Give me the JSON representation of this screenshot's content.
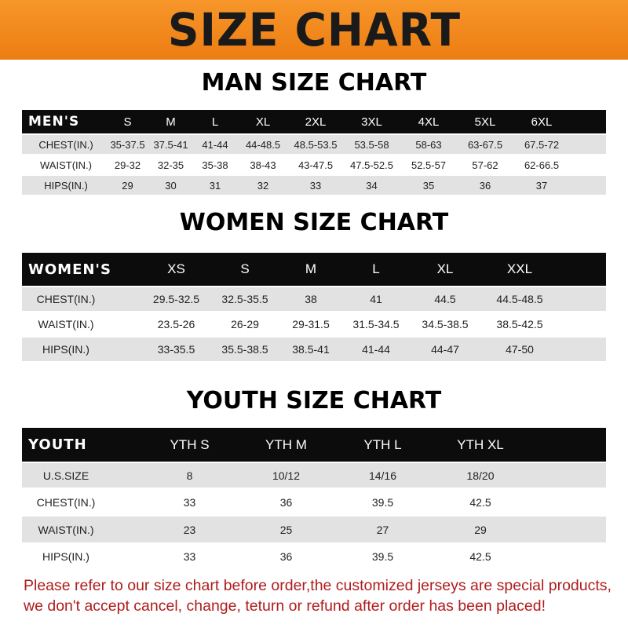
{
  "banner": {
    "title": "SIZE CHART"
  },
  "men": {
    "title": "MAN SIZE CHART",
    "header": "MEN'S",
    "sizes": [
      "S",
      "M",
      "L",
      "XL",
      "2XL",
      "3XL",
      "4XL",
      "5XL",
      "6XL"
    ],
    "rows": [
      {
        "label": "CHEST(IN.)",
        "values": [
          "35-37.5",
          "37.5-41",
          "41-44",
          "44-48.5",
          "48.5-53.5",
          "53.5-58",
          "58-63",
          "63-67.5",
          "67.5-72"
        ]
      },
      {
        "label": "WAIST(IN.)",
        "values": [
          "29-32",
          "32-35",
          "35-38",
          "38-43",
          "43-47.5",
          "47.5-52.5",
          "52.5-57",
          "57-62",
          "62-66.5"
        ]
      },
      {
        "label": "HIPS(IN.)",
        "values": [
          "29",
          "30",
          "31",
          "32",
          "33",
          "34",
          "35",
          "36",
          "37"
        ]
      }
    ]
  },
  "women": {
    "title": "WOMEN SIZE CHART",
    "header": "WOMEN'S",
    "sizes": [
      "XS",
      "S",
      "M",
      "L",
      "XL",
      "XXL"
    ],
    "rows": [
      {
        "label": "CHEST(IN.)",
        "values": [
          "29.5-32.5",
          "32.5-35.5",
          "38",
          "41",
          "44.5",
          "44.5-48.5"
        ]
      },
      {
        "label": "WAIST(IN.)",
        "values": [
          "23.5-26",
          "26-29",
          "29-31.5",
          "31.5-34.5",
          "34.5-38.5",
          "38.5-42.5"
        ]
      },
      {
        "label": "HIPS(IN.)",
        "values": [
          "33-35.5",
          "35.5-38.5",
          "38.5-41",
          "41-44",
          "44-47",
          "47-50"
        ]
      }
    ]
  },
  "youth": {
    "title": "YOUTH SIZE CHART",
    "header": "YOUTH",
    "sizes": [
      "YTH S",
      "YTH M",
      "YTH L",
      "YTH XL"
    ],
    "rows": [
      {
        "label": "U.S.SIZE",
        "values": [
          "8",
          "10/12",
          "14/16",
          "18/20"
        ]
      },
      {
        "label": "CHEST(IN.)",
        "values": [
          "33",
          "36",
          "39.5",
          "42.5"
        ]
      },
      {
        "label": "WAIST(IN.)",
        "values": [
          "23",
          "25",
          "27",
          "29"
        ]
      },
      {
        "label": "HIPS(IN.)",
        "values": [
          "33",
          "36",
          "39.5",
          "42.5"
        ]
      }
    ]
  },
  "note": {
    "line1": "Please refer to our size chart before order,the customized jerseys are special products,",
    "line2": "we don't accept cancel, change, teturn or refund after order has been placed!"
  }
}
